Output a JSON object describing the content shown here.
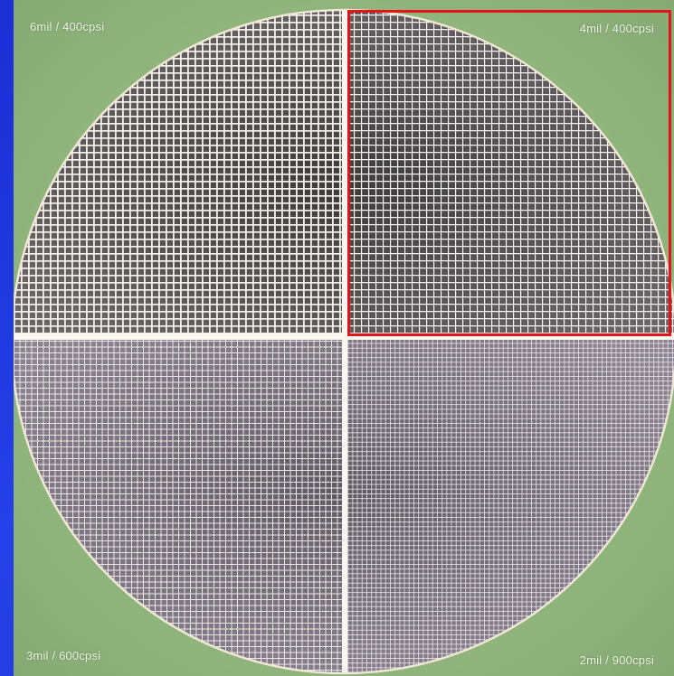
{
  "quadrants": [
    {
      "position": "top-left",
      "label": "6mil / 400cpsi"
    },
    {
      "position": "top-right",
      "label": "4mil / 400cpsi",
      "highlighted": true
    },
    {
      "position": "bottom-left",
      "label": "3mil / 600cpsi"
    },
    {
      "position": "bottom-right",
      "label": "2mil / 900cpsi"
    }
  ],
  "colors": {
    "slide_background": "#1f37df",
    "photo_background": "#93b67f",
    "highlight_border": "#e3121b",
    "cell_wall": "#f4f1ea",
    "cell_fill_top": "#4d4a4c",
    "cell_fill_bottom": "#6b6670"
  }
}
